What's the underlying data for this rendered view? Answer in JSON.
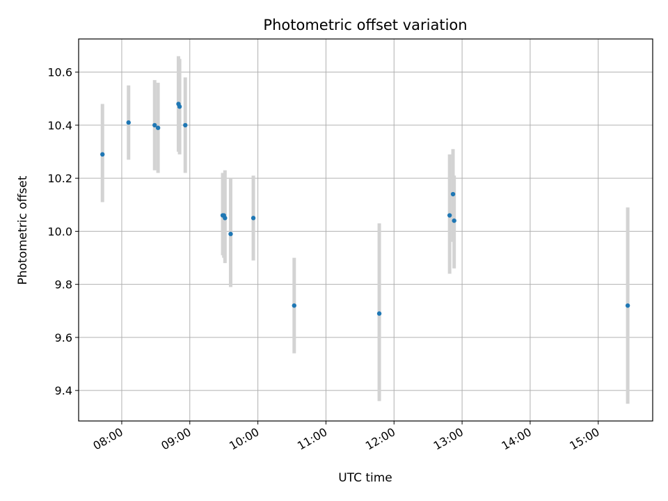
{
  "chart_data": {
    "type": "scatter",
    "title": "Photometric offset variation",
    "xlabel": "UTC time",
    "ylabel": "Photometric offset",
    "x_ticks": [
      "08:00",
      "09:00",
      "10:00",
      "11:00",
      "12:00",
      "13:00",
      "14:00",
      "15:00"
    ],
    "y_ticks": [
      "9.4",
      "9.6",
      "9.8",
      "10.0",
      "10.2",
      "10.4",
      "10.6"
    ],
    "xlim": [
      "07:22",
      "15:48"
    ],
    "ylim": [
      9.285,
      10.725
    ],
    "grid": true,
    "colors": {
      "point": "#1f77b4",
      "errorbar": "#d3d3d3",
      "grid": "#b0b0b0"
    },
    "points": [
      {
        "x": "07:43",
        "y": 10.29,
        "low": 10.11,
        "high": 10.48
      },
      {
        "x": "08:06",
        "y": 10.41,
        "low": 10.27,
        "high": 10.55
      },
      {
        "x": "08:29",
        "y": 10.4,
        "low": 10.23,
        "high": 10.57
      },
      {
        "x": "08:32",
        "y": 10.39,
        "low": 10.22,
        "high": 10.56
      },
      {
        "x": "08:50",
        "y": 10.48,
        "low": 10.3,
        "high": 10.66
      },
      {
        "x": "08:51",
        "y": 10.47,
        "low": 10.29,
        "high": 10.65
      },
      {
        "x": "08:56",
        "y": 10.4,
        "low": 10.22,
        "high": 10.58
      },
      {
        "x": "09:29",
        "y": 10.06,
        "low": 9.91,
        "high": 10.22
      },
      {
        "x": "09:30",
        "y": 10.06,
        "low": 9.9,
        "high": 10.21
      },
      {
        "x": "09:31",
        "y": 10.05,
        "low": 9.88,
        "high": 10.23
      },
      {
        "x": "09:36",
        "y": 9.99,
        "low": 9.79,
        "high": 10.2
      },
      {
        "x": "09:56",
        "y": 10.05,
        "low": 9.89,
        "high": 10.21
      },
      {
        "x": "10:32",
        "y": 9.72,
        "low": 9.54,
        "high": 9.9
      },
      {
        "x": "11:47",
        "y": 9.69,
        "low": 9.36,
        "high": 10.03
      },
      {
        "x": "12:49",
        "y": 10.06,
        "low": 9.84,
        "high": 10.29
      },
      {
        "x": "12:52",
        "y": 10.14,
        "low": 9.96,
        "high": 10.31
      },
      {
        "x": "12:53",
        "y": 10.04,
        "low": 9.86,
        "high": 10.21
      },
      {
        "x": "15:26",
        "y": 9.72,
        "low": 9.35,
        "high": 10.09
      }
    ]
  }
}
